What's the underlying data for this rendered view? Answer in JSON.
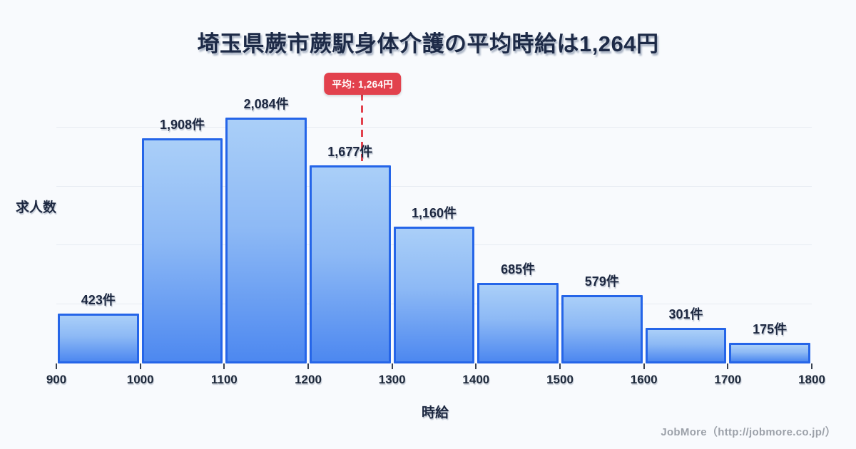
{
  "title": "埼玉県蕨市蕨駅身体介護の平均時給は1,264円",
  "axis": {
    "ylabel": "求人数",
    "xlabel": "時給"
  },
  "footer": {
    "credit": "JobMore（http://jobmore.co.jp/）"
  },
  "chart_data": {
    "type": "bar",
    "title": "埼玉県蕨市蕨駅身体介護の平均時給は1,264円",
    "xlabel": "時給",
    "ylabel": "求人数",
    "bin_edges": [
      900,
      1000,
      1100,
      1200,
      1300,
      1400,
      1500,
      1600,
      1700,
      1800
    ],
    "categories": [
      "900-1000",
      "1000-1100",
      "1100-1200",
      "1200-1300",
      "1300-1400",
      "1400-1500",
      "1500-1600",
      "1600-1700",
      "1700-1800"
    ],
    "values": [
      423,
      1908,
      2084,
      1677,
      1160,
      685,
      579,
      301,
      175
    ],
    "value_labels": [
      "423件",
      "1,908件",
      "2,084件",
      "1,677件",
      "1,160件",
      "685件",
      "579件",
      "301件",
      "175件"
    ],
    "xticks": [
      "900",
      "1000",
      "1100",
      "1200",
      "1300",
      "1400",
      "1500",
      "1600",
      "1700",
      "1800"
    ],
    "ylim": [
      0,
      2500
    ],
    "gridlines": [
      500,
      1000,
      1500,
      2000
    ],
    "grid": "horizontal-faint",
    "legend": "none",
    "average": {
      "value": 1264,
      "label": "平均: 1,264円"
    },
    "colors": {
      "bar_fill_top": "#aacff8",
      "bar_fill_bottom": "#4d88f0",
      "bar_border": "#2565e8",
      "average_line": "#e2414d",
      "title_text": "#1d2a47",
      "label_text": "#1c2740",
      "background": "#f8fafd",
      "gridline": "#e7ebf2",
      "footer_text": "#9ca1a9"
    }
  }
}
